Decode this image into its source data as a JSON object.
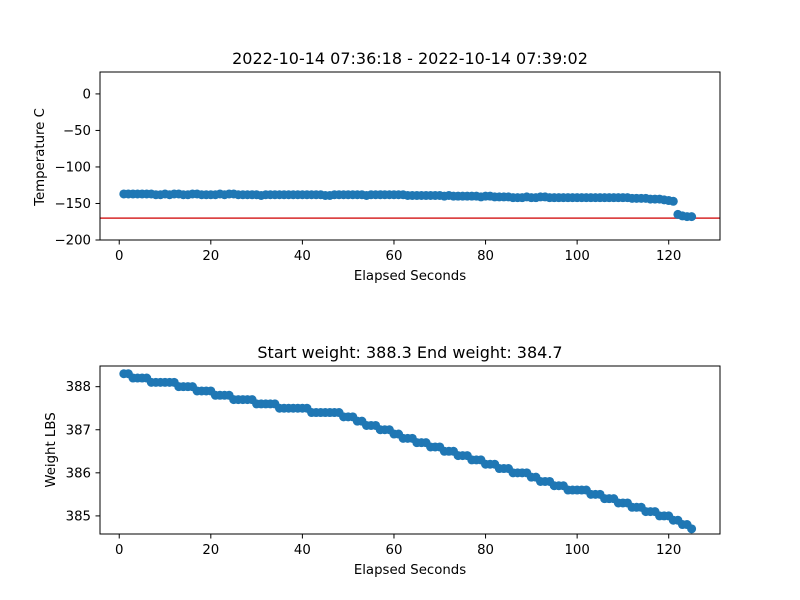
{
  "chart_data": [
    {
      "type": "scatter",
      "title": "2022-10-14 07:36:18 - 2022-10-14 07:39:02",
      "xlabel": "Elapsed Seconds",
      "ylabel": "Temperature C",
      "xlim": [
        -4.2,
        131.2
      ],
      "ylim": [
        -200,
        30
      ],
      "xticks": [
        0,
        20,
        40,
        60,
        80,
        100,
        120
      ],
      "yticks": [
        0,
        -50,
        -100,
        -150,
        -200
      ],
      "grid": false,
      "marker_color": "#1f77b4",
      "reference_line": {
        "y": -170,
        "color": "#d62728"
      },
      "x": [
        1,
        2,
        3,
        4,
        5,
        6,
        7,
        8,
        9,
        10,
        11,
        12,
        13,
        14,
        15,
        16,
        17,
        18,
        19,
        20,
        21,
        22,
        23,
        24,
        25,
        26,
        27,
        28,
        29,
        30,
        31,
        32,
        33,
        34,
        35,
        36,
        37,
        38,
        39,
        40,
        41,
        42,
        43,
        44,
        45,
        46,
        47,
        48,
        49,
        50,
        51,
        52,
        53,
        54,
        55,
        56,
        57,
        58,
        59,
        60,
        61,
        62,
        63,
        64,
        65,
        66,
        67,
        68,
        69,
        70,
        71,
        72,
        73,
        74,
        75,
        76,
        77,
        78,
        79,
        80,
        81,
        82,
        83,
        84,
        85,
        86,
        87,
        88,
        89,
        90,
        91,
        92,
        93,
        94,
        95,
        96,
        97,
        98,
        99,
        100,
        101,
        102,
        103,
        104,
        105,
        106,
        107,
        108,
        109,
        110,
        111,
        112,
        113,
        114,
        115,
        116,
        117,
        118,
        119,
        120,
        121,
        122,
        123,
        124,
        125
      ],
      "y": [
        -137,
        -137,
        -137,
        -137,
        -137,
        -137,
        -137,
        -138,
        -138,
        -137,
        -138,
        -137,
        -137,
        -138,
        -138,
        -137,
        -137,
        -138,
        -138,
        -138,
        -138,
        -137,
        -138,
        -137,
        -137,
        -138,
        -138,
        -138,
        -138,
        -138,
        -139,
        -138,
        -138,
        -138,
        -138,
        -138,
        -138,
        -138,
        -138,
        -138,
        -138,
        -138,
        -138,
        -138,
        -139,
        -139,
        -138,
        -138,
        -138,
        -138,
        -138,
        -138,
        -138,
        -139,
        -138,
        -138,
        -138,
        -138,
        -138,
        -138,
        -138,
        -138,
        -139,
        -139,
        -139,
        -139,
        -139,
        -139,
        -139,
        -139,
        -140,
        -139,
        -140,
        -140,
        -140,
        -140,
        -140,
        -140,
        -141,
        -140,
        -140,
        -141,
        -141,
        -141,
        -141,
        -142,
        -142,
        -142,
        -141,
        -142,
        -142,
        -141,
        -141,
        -142,
        -142,
        -142,
        -142,
        -142,
        -142,
        -142,
        -142,
        -142,
        -142,
        -142,
        -142,
        -142,
        -142,
        -142,
        -142,
        -142,
        -142,
        -143,
        -143,
        -143,
        -143,
        -144,
        -144,
        -144,
        -145,
        -146,
        -147,
        -165,
        -167,
        -168,
        -168
      ]
    },
    {
      "type": "scatter",
      "title": "Start weight: 388.3 End weight: 384.7",
      "xlabel": "Elapsed Seconds",
      "ylabel": "Weight LBS",
      "xlim": [
        -4.2,
        131.2
      ],
      "ylim": [
        384.58,
        388.48
      ],
      "xticks": [
        0,
        20,
        40,
        60,
        80,
        100,
        120
      ],
      "yticks": [
        388,
        387,
        386,
        385
      ],
      "grid": false,
      "marker_color": "#1f77b4",
      "x": [
        1,
        2,
        3,
        4,
        5,
        6,
        7,
        8,
        9,
        10,
        11,
        12,
        13,
        14,
        15,
        16,
        17,
        18,
        19,
        20,
        21,
        22,
        23,
        24,
        25,
        26,
        27,
        28,
        29,
        30,
        31,
        32,
        33,
        34,
        35,
        36,
        37,
        38,
        39,
        40,
        41,
        42,
        43,
        44,
        45,
        46,
        47,
        48,
        49,
        50,
        51,
        52,
        53,
        54,
        55,
        56,
        57,
        58,
        59,
        60,
        61,
        62,
        63,
        64,
        65,
        66,
        67,
        68,
        69,
        70,
        71,
        72,
        73,
        74,
        75,
        76,
        77,
        78,
        79,
        80,
        81,
        82,
        83,
        84,
        85,
        86,
        87,
        88,
        89,
        90,
        91,
        92,
        93,
        94,
        95,
        96,
        97,
        98,
        99,
        100,
        101,
        102,
        103,
        104,
        105,
        106,
        107,
        108,
        109,
        110,
        111,
        112,
        113,
        114,
        115,
        116,
        117,
        118,
        119,
        120,
        121,
        122,
        123,
        124,
        125
      ],
      "y": [
        388.3,
        388.3,
        388.2,
        388.2,
        388.2,
        388.2,
        388.1,
        388.1,
        388.1,
        388.1,
        388.1,
        388.1,
        388.0,
        388.0,
        388.0,
        388.0,
        387.9,
        387.9,
        387.9,
        387.9,
        387.8,
        387.8,
        387.8,
        387.8,
        387.7,
        387.7,
        387.7,
        387.7,
        387.7,
        387.6,
        387.6,
        387.6,
        387.6,
        387.6,
        387.5,
        387.5,
        387.5,
        387.5,
        387.5,
        387.5,
        387.5,
        387.4,
        387.4,
        387.4,
        387.4,
        387.4,
        387.4,
        387.4,
        387.3,
        387.3,
        387.3,
        387.2,
        387.2,
        387.1,
        387.1,
        387.1,
        387.0,
        387.0,
        387.0,
        386.9,
        386.9,
        386.8,
        386.8,
        386.8,
        386.7,
        386.7,
        386.7,
        386.6,
        386.6,
        386.6,
        386.5,
        386.5,
        386.5,
        386.4,
        386.4,
        386.4,
        386.3,
        386.3,
        386.3,
        386.2,
        386.2,
        386.2,
        386.1,
        386.1,
        386.1,
        386.0,
        386.0,
        386.0,
        386.0,
        385.9,
        385.9,
        385.8,
        385.8,
        385.8,
        385.7,
        385.7,
        385.7,
        385.6,
        385.6,
        385.6,
        385.6,
        385.6,
        385.5,
        385.5,
        385.5,
        385.4,
        385.4,
        385.4,
        385.3,
        385.3,
        385.3,
        385.2,
        385.2,
        385.2,
        385.1,
        385.1,
        385.1,
        385.0,
        385.0,
        385.0,
        384.9,
        384.9,
        384.8,
        384.8,
        384.7
      ]
    }
  ]
}
